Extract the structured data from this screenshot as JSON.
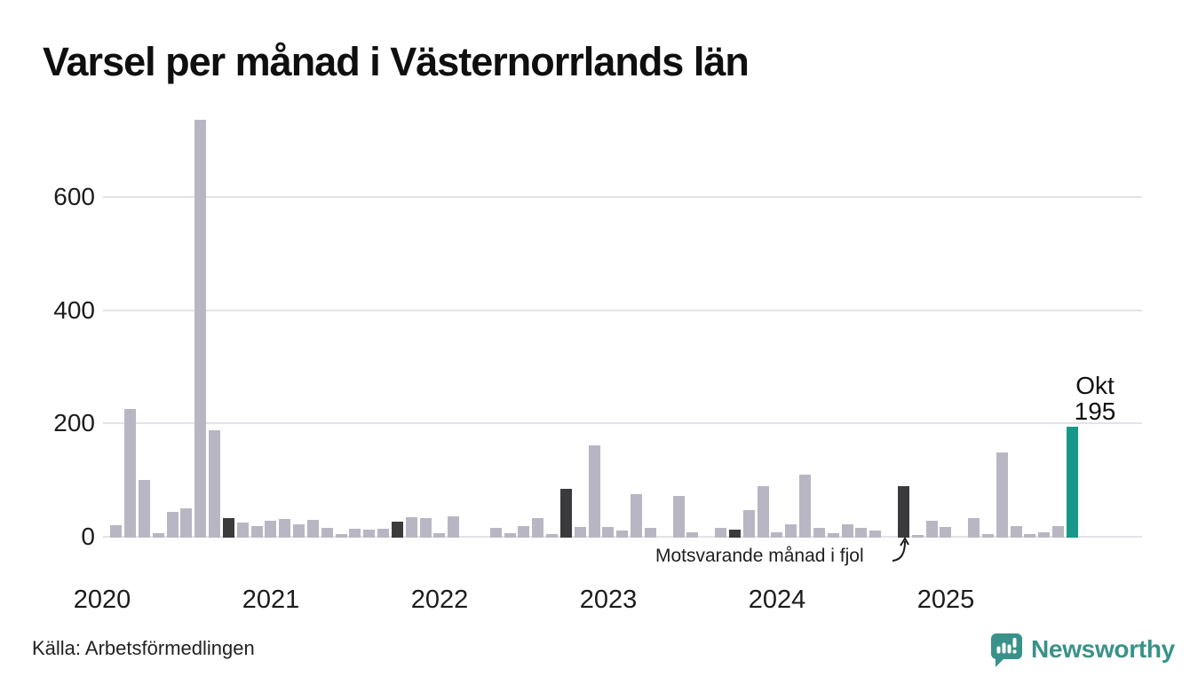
{
  "title": "Varsel per månad i Västernorrlands län",
  "source": "Källa: Arbetsförmedlingen",
  "annotation": "Motsvarande månad i fjol",
  "highlight": {
    "month_label": "Okt",
    "value_label": "195"
  },
  "logo": {
    "text": "Newsworthy"
  },
  "colors": {
    "normal": "#b9b6c4",
    "prev_year": "#3b3b3d",
    "current": "#17988b",
    "grid": "#e4e3e8",
    "logo_teal": "#399289",
    "text": "#1c1c1e"
  },
  "chart_data": {
    "type": "bar",
    "title": "Varsel per månad i Västernorrlands län",
    "xlabel": "",
    "ylabel": "",
    "ylim": [
      0,
      740
    ],
    "yticks": [
      0,
      200,
      400,
      600
    ],
    "grid": "horizontal",
    "years": [
      "2020",
      "2021",
      "2022",
      "2023",
      "2024",
      "2025"
    ],
    "legend": "none",
    "highlight_note": "Dark bars mark October of each year (same month in previous years); teal bar is the current month Okt 2025 = 195",
    "months": [
      {
        "label": "2020-01",
        "value": 0,
        "role": "normal"
      },
      {
        "label": "2020-02",
        "value": 22,
        "role": "normal"
      },
      {
        "label": "2020-03",
        "value": 227,
        "role": "normal"
      },
      {
        "label": "2020-04",
        "value": 102,
        "role": "normal"
      },
      {
        "label": "2020-05",
        "value": 8,
        "role": "normal"
      },
      {
        "label": "2020-06",
        "value": 46,
        "role": "normal"
      },
      {
        "label": "2020-07",
        "value": 51,
        "role": "normal"
      },
      {
        "label": "2020-08",
        "value": 737,
        "role": "normal"
      },
      {
        "label": "2020-09",
        "value": 190,
        "role": "normal"
      },
      {
        "label": "2020-10",
        "value": 35,
        "role": "prev_year"
      },
      {
        "label": "2020-11",
        "value": 27,
        "role": "normal"
      },
      {
        "label": "2020-12",
        "value": 21,
        "role": "normal"
      },
      {
        "label": "2021-01",
        "value": 30,
        "role": "normal"
      },
      {
        "label": "2021-02",
        "value": 33,
        "role": "normal"
      },
      {
        "label": "2021-03",
        "value": 24,
        "role": "normal"
      },
      {
        "label": "2021-04",
        "value": 31,
        "role": "normal"
      },
      {
        "label": "2021-05",
        "value": 17,
        "role": "normal"
      },
      {
        "label": "2021-06",
        "value": 6,
        "role": "normal"
      },
      {
        "label": "2021-07",
        "value": 15,
        "role": "normal"
      },
      {
        "label": "2021-08",
        "value": 14,
        "role": "normal"
      },
      {
        "label": "2021-09",
        "value": 16,
        "role": "normal"
      },
      {
        "label": "2021-10",
        "value": 28,
        "role": "prev_year"
      },
      {
        "label": "2021-11",
        "value": 36,
        "role": "normal"
      },
      {
        "label": "2021-12",
        "value": 35,
        "role": "normal"
      },
      {
        "label": "2022-01",
        "value": 8,
        "role": "normal"
      },
      {
        "label": "2022-02",
        "value": 38,
        "role": "normal"
      },
      {
        "label": "2022-03",
        "value": 0,
        "role": "normal"
      },
      {
        "label": "2022-04",
        "value": 0,
        "role": "normal"
      },
      {
        "label": "2022-05",
        "value": 17,
        "role": "normal"
      },
      {
        "label": "2022-06",
        "value": 8,
        "role": "normal"
      },
      {
        "label": "2022-07",
        "value": 20,
        "role": "normal"
      },
      {
        "label": "2022-08",
        "value": 35,
        "role": "normal"
      },
      {
        "label": "2022-09",
        "value": 6,
        "role": "normal"
      },
      {
        "label": "2022-10",
        "value": 86,
        "role": "prev_year"
      },
      {
        "label": "2022-11",
        "value": 19,
        "role": "normal"
      },
      {
        "label": "2022-12",
        "value": 163,
        "role": "normal"
      },
      {
        "label": "2023-01",
        "value": 19,
        "role": "normal"
      },
      {
        "label": "2023-02",
        "value": 12,
        "role": "normal"
      },
      {
        "label": "2023-03",
        "value": 76,
        "role": "normal"
      },
      {
        "label": "2023-04",
        "value": 17,
        "role": "normal"
      },
      {
        "label": "2023-05",
        "value": 0,
        "role": "normal"
      },
      {
        "label": "2023-06",
        "value": 73,
        "role": "normal"
      },
      {
        "label": "2023-07",
        "value": 10,
        "role": "normal"
      },
      {
        "label": "2023-08",
        "value": 0,
        "role": "normal"
      },
      {
        "label": "2023-09",
        "value": 17,
        "role": "normal"
      },
      {
        "label": "2023-10",
        "value": 14,
        "role": "prev_year"
      },
      {
        "label": "2023-11",
        "value": 48,
        "role": "normal"
      },
      {
        "label": "2023-12",
        "value": 91,
        "role": "normal"
      },
      {
        "label": "2024-01",
        "value": 9,
        "role": "normal"
      },
      {
        "label": "2024-02",
        "value": 23,
        "role": "normal"
      },
      {
        "label": "2024-03",
        "value": 111,
        "role": "normal"
      },
      {
        "label": "2024-04",
        "value": 18,
        "role": "normal"
      },
      {
        "label": "2024-05",
        "value": 8,
        "role": "normal"
      },
      {
        "label": "2024-06",
        "value": 23,
        "role": "normal"
      },
      {
        "label": "2024-07",
        "value": 18,
        "role": "normal"
      },
      {
        "label": "2024-08",
        "value": 13,
        "role": "normal"
      },
      {
        "label": "2024-09",
        "value": 0,
        "role": "normal"
      },
      {
        "label": "2024-10",
        "value": 91,
        "role": "prev_year"
      },
      {
        "label": "2024-11",
        "value": 5,
        "role": "normal"
      },
      {
        "label": "2024-12",
        "value": 30,
        "role": "normal"
      },
      {
        "label": "2025-01",
        "value": 19,
        "role": "normal"
      },
      {
        "label": "2025-02",
        "value": 0,
        "role": "normal"
      },
      {
        "label": "2025-03",
        "value": 34,
        "role": "normal"
      },
      {
        "label": "2025-04",
        "value": 6,
        "role": "normal"
      },
      {
        "label": "2025-05",
        "value": 151,
        "role": "normal"
      },
      {
        "label": "2025-06",
        "value": 20,
        "role": "normal"
      },
      {
        "label": "2025-07",
        "value": 6,
        "role": "normal"
      },
      {
        "label": "2025-08",
        "value": 10,
        "role": "normal"
      },
      {
        "label": "2025-09",
        "value": 21,
        "role": "normal"
      },
      {
        "label": "2025-10",
        "value": 195,
        "role": "current"
      }
    ]
  }
}
